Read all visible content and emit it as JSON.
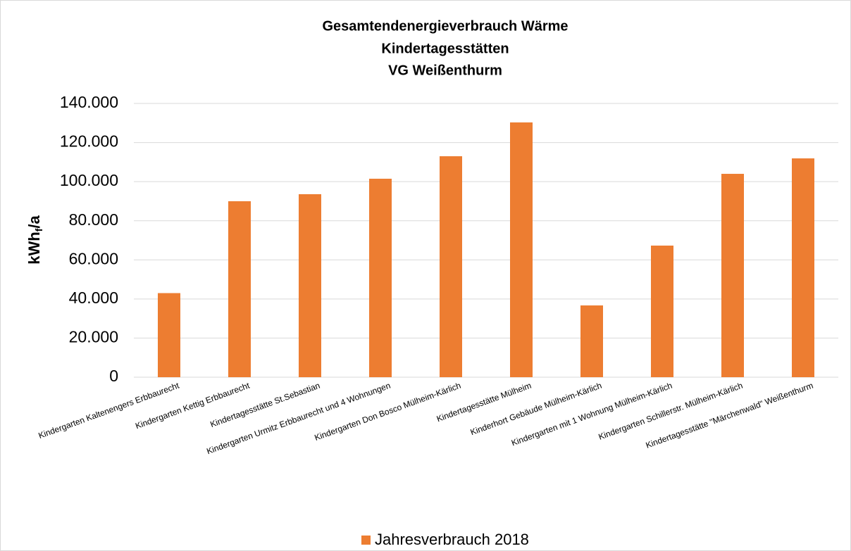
{
  "chart_data": {
    "type": "bar",
    "title": [
      "Gesamtendenergieverbrauch Wärme",
      "Kindertagesstätten",
      "VG Weißenthurm"
    ],
    "y_label": [
      "kWh",
      "f",
      "/a"
    ],
    "categories": [
      "Kindergarten Kaltenengers Erbbaurecht",
      "Kindergarten Kettig Erbbaurecht",
      "Kindertagesstätte St.Sebastian",
      "Kindergarten Urmitz Erbbaurecht und 4 Wohnungen",
      "Kindergarten Don Bosco Mülheim-Kärlich",
      "Kindertagesstätte Mülheim",
      "Kinderhort Gebäude Mülheim-Kärlich",
      "Kindergarten mit 1 Wohnung Mülheim-Kärlich",
      "Kindergarten Schillerstr. Mülheim-Kärlich",
      "Kindertagesstätte \"Märchenwald\" Weißenthurm"
    ],
    "series": [
      {
        "name": "Jahresverbrauch 2018",
        "color": "#ed7d31",
        "values": [
          43000,
          90000,
          93600,
          101500,
          113000,
          130300,
          36700,
          67300,
          104000,
          111900
        ]
      }
    ],
    "ylim": [
      0,
      140000
    ],
    "yticks": [
      {
        "value": 0,
        "label": "0"
      },
      {
        "value": 20000,
        "label": "20.000"
      },
      {
        "value": 40000,
        "label": "40.000"
      },
      {
        "value": 60000,
        "label": "60.000"
      },
      {
        "value": 80000,
        "label": "80.000"
      },
      {
        "value": 100000,
        "label": "100.000"
      },
      {
        "value": 120000,
        "label": "120.000"
      },
      {
        "value": 140000,
        "label": "140.000"
      }
    ],
    "grid": true,
    "legend": "bottom"
  }
}
